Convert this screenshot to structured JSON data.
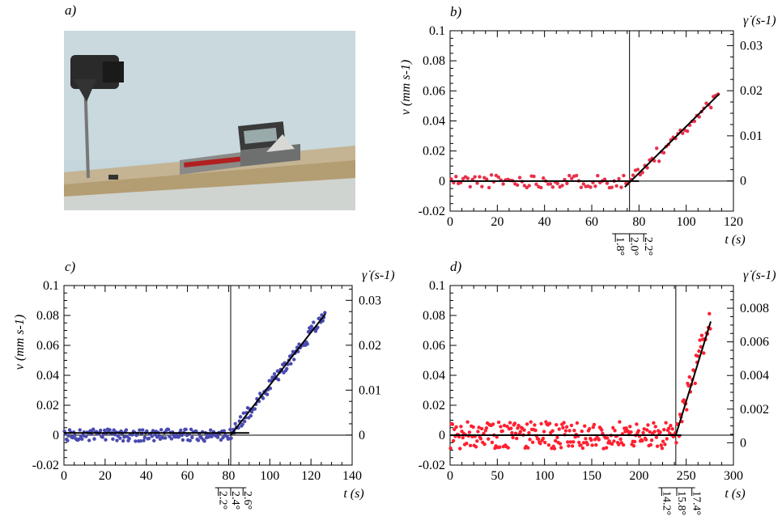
{
  "panel_labels": {
    "a": "a)",
    "b": "b)",
    "c": "c)",
    "d": "d)"
  },
  "photo": {
    "description": "photograph of inclined plane experimental setup"
  },
  "chart_data": [
    {
      "type": "scatter",
      "panel": "b)",
      "xlabel": "t (s)",
      "ylabel": "v (mm s-1)",
      "y2label": "γ̇ (s-1)",
      "xlim": [
        0,
        120
      ],
      "ylim": [
        -0.02,
        0.1
      ],
      "y2lim": [
        -0.0067,
        0.0333
      ],
      "xticks": [
        "0",
        "20",
        "40",
        "60",
        "80",
        "100",
        "120"
      ],
      "yticks": [
        "-0.02",
        "0",
        "0.02",
        "0.04",
        "0.06",
        "0.08",
        "0.1"
      ],
      "y2ticks": [
        "0",
        "0.01",
        "0.02",
        "0.03"
      ],
      "y2tick_values": [
        0,
        0.01,
        0.02,
        0.03
      ],
      "vline_x": 76,
      "fit_line": [
        [
          74,
          -0.004
        ],
        [
          114,
          0.058
        ]
      ],
      "hline_fit": [
        [
          0,
          0
        ],
        [
          80,
          0
        ]
      ],
      "angle_ticks": {
        "values": [
          "1.8°",
          "2.0°",
          "2.2°"
        ],
        "x": [
          70,
          76,
          82
        ]
      },
      "color": "#e8304a",
      "n_points": 114,
      "noise_amp": 0.0045,
      "rise": {
        "start": 77,
        "slope": 0.00155
      }
    },
    {
      "type": "scatter",
      "panel": "c)",
      "xlabel": "t (s)",
      "ylabel": "v (mm s-1)",
      "y2label": "γ̇ (s-1)",
      "xlim": [
        0,
        140
      ],
      "ylim": [
        -0.02,
        0.1
      ],
      "y2lim": [
        -0.0067,
        0.0333
      ],
      "xticks": [
        "0",
        "20",
        "40",
        "60",
        "80",
        "100",
        "120",
        "140"
      ],
      "yticks": [
        "-0.02",
        "0",
        "0.02",
        "0.04",
        "0.06",
        "0.08",
        "0.1"
      ],
      "y2ticks": [
        "0",
        "0.01",
        "0.02",
        "0.03"
      ],
      "y2tick_values": [
        0,
        0.01,
        0.02,
        0.03
      ],
      "vline_x": 81,
      "fit_line": [
        [
          81,
          0
        ],
        [
          127,
          0.081
        ]
      ],
      "hline_fit": [
        [
          0,
          0.0015
        ],
        [
          90,
          0.0015
        ]
      ],
      "angle_ticks": {
        "values": [
          "2.2°",
          "2.4°",
          "2.6°"
        ],
        "x": [
          75,
          81,
          87
        ]
      },
      "color": "#4a4ab0",
      "n_points": 254,
      "noise_amp": 0.004,
      "rise": {
        "start": 81,
        "slope": 0.00176
      }
    },
    {
      "type": "scatter",
      "panel": "d)",
      "xlabel": "t (s)",
      "ylabel": "",
      "y2label": "γ̇ (s-1)",
      "xlim": [
        0,
        300
      ],
      "ylim": [
        -0.02,
        0.1
      ],
      "y2lim": [
        -0.00133,
        0.00935
      ],
      "xticks": [
        "0",
        "50",
        "100",
        "150",
        "200",
        "250",
        "300"
      ],
      "yticks": [
        "-0.02",
        "0",
        "0.02",
        "0.04",
        "0.06",
        "0.08",
        "0.1"
      ],
      "y2ticks": [
        "0",
        "0.002",
        "0.004",
        "0.006",
        "0.008"
      ],
      "y2tick_values": [
        0,
        0.002,
        0.004,
        0.006,
        0.008
      ],
      "vline_x": 239,
      "fit_line": [
        [
          239,
          0
        ],
        [
          276,
          0.076
        ]
      ],
      "hline_fit": [
        [
          0,
          0
        ],
        [
          245,
          0
        ]
      ],
      "angle_ticks": {
        "values": [
          "14.2°",
          "15.8°",
          "17.4°"
        ],
        "x": [
          224,
          240,
          256
        ]
      },
      "color": "#ff2030",
      "n_points": 276,
      "noise_amp": 0.009,
      "rise": {
        "start": 240,
        "slope": 0.00215
      }
    }
  ]
}
